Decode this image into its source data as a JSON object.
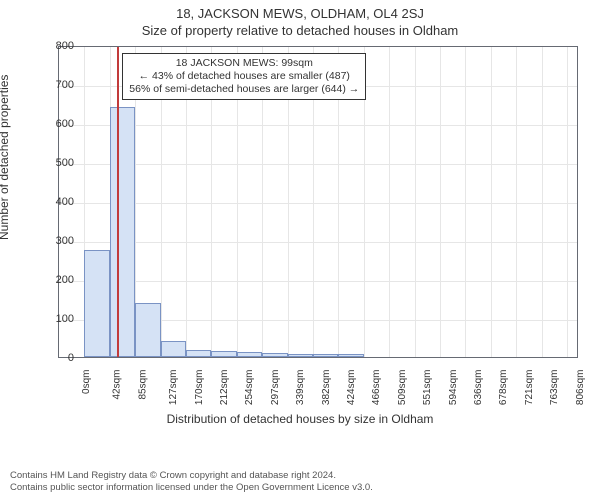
{
  "header": {
    "address": "18, JACKSON MEWS, OLDHAM, OL4 2SJ",
    "subtitle": "Size of property relative to detached houses in Oldham"
  },
  "chart": {
    "type": "histogram",
    "ylabel": "Number of detached properties",
    "xlabel": "Distribution of detached houses by size in Oldham",
    "plot_bg": "#ffffff",
    "grid_color": "#e6e6e6",
    "border_color": "#666a73",
    "bar_fill": "#d5e2f5",
    "bar_stroke": "#7a93c4",
    "marker_color": "#c23b3b",
    "marker_value": 99,
    "y": {
      "min": 0,
      "max": 800,
      "step": 100
    },
    "x": {
      "min": 0,
      "max": 868,
      "tick_start": 0,
      "tick_step": 42.4,
      "tick_count": 21,
      "unit": "sqm"
    },
    "bin_width": 42.4,
    "values": [
      0,
      275,
      640,
      138,
      40,
      18,
      15,
      12,
      10,
      8,
      8,
      7,
      0,
      0,
      0,
      0,
      0,
      0,
      0,
      0,
      0
    ],
    "annotation": {
      "line1": "18 JACKSON MEWS: 99sqm",
      "line2": "← 43% of detached houses are smaller (487)",
      "line3": "56% of semi-detached houses are larger (644) →",
      "box_border": "#333333",
      "box_bg": "#ffffff",
      "fontsize": 10.5
    }
  },
  "footer": {
    "line1": "Contains HM Land Registry data © Crown copyright and database right 2024.",
    "line2": "Contains public sector information licensed under the Open Government Licence v3.0."
  }
}
